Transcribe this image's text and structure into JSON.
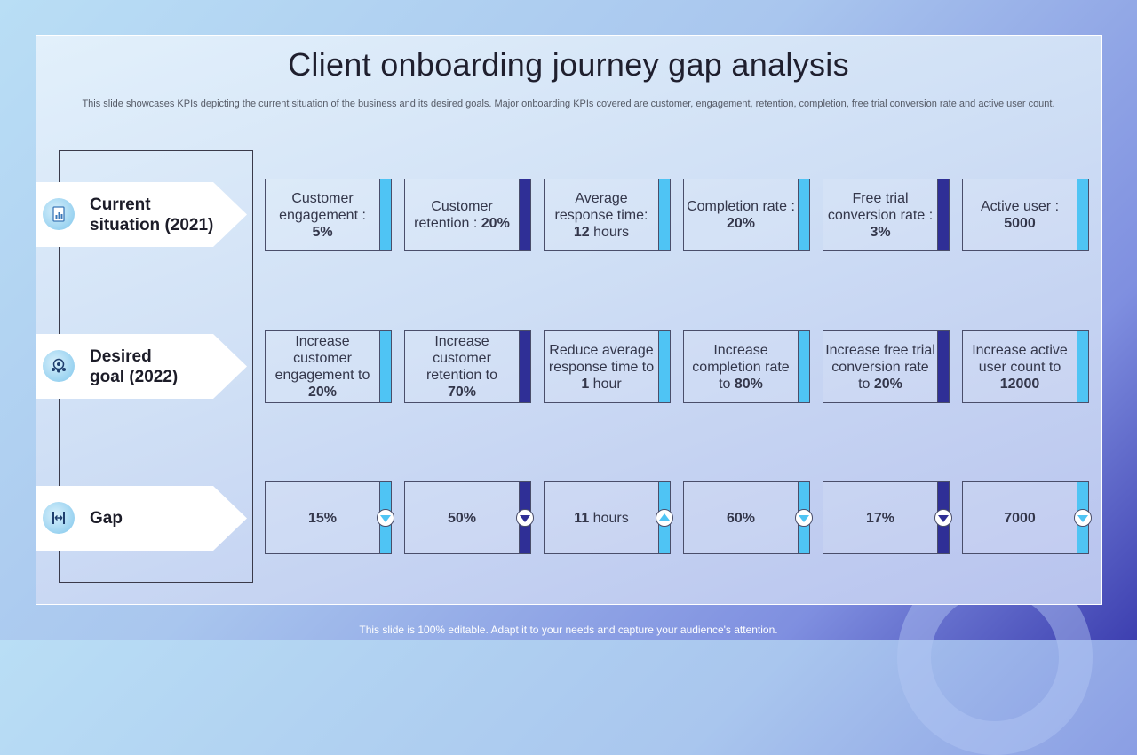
{
  "title": "Client onboarding journey gap analysis",
  "subtitle": "This slide showcases KPIs depicting the current situation of the business and its desired goals. Major onboarding KPIs covered are customer, engagement, retention, completion, free trial conversion rate and active user count.",
  "footer": "This slide is 100% editable. Adapt it to your needs and capture your audience's attention.",
  "rows": {
    "current": {
      "label_line1": "Current",
      "label_line2": "situation (2021)",
      "icon": "report-icon"
    },
    "desired": {
      "label_line1": "Desired",
      "label_line2": "goal (2022)",
      "icon": "target-group-icon"
    },
    "gap": {
      "label": "Gap",
      "icon": "gap-measure-icon"
    }
  },
  "current": [
    {
      "text": "Customer engagement :",
      "value": "5%"
    },
    {
      "text": "Customer retention :",
      "value": "20%"
    },
    {
      "text": "Average response time:",
      "value": "12",
      "unit": " hours"
    },
    {
      "text": "Completion rate :",
      "value": "20%"
    },
    {
      "text": "Free trial conversion rate :",
      "value": "3%"
    },
    {
      "text": "Active user :",
      "value": "5000"
    }
  ],
  "desired": [
    {
      "text": "Increase customer engagement to",
      "value": "20%"
    },
    {
      "text": "Increase customer retention to",
      "value": "70%"
    },
    {
      "text": "Reduce average response time to",
      "value": "1",
      "unit": " hour"
    },
    {
      "text": "Increase completion rate to",
      "value": "80%"
    },
    {
      "text": "Increase free trial conversion rate to",
      "value": "20%"
    },
    {
      "text": "Increase active user count to",
      "value": "12000"
    }
  ],
  "gap": [
    {
      "value": "15%",
      "unit": "",
      "direction": "down",
      "arrow_icon": "arrow-down-icon"
    },
    {
      "value": "50%",
      "unit": "",
      "direction": "down",
      "arrow_icon": "arrow-down-icon"
    },
    {
      "value": "11",
      "unit": " hours",
      "direction": "up",
      "arrow_icon": "arrow-up-icon"
    },
    {
      "value": "60%",
      "unit": "",
      "direction": "down",
      "arrow_icon": "arrow-down-icon"
    },
    {
      "value": "17%",
      "unit": "",
      "direction": "down",
      "arrow_icon": "arrow-down-icon"
    },
    {
      "value": "7000",
      "unit": "",
      "direction": "down",
      "arrow_icon": "arrow-down-icon"
    }
  ],
  "colors": {
    "accent_light": "#4fc4f4",
    "accent_dark": "#2f2f96"
  }
}
